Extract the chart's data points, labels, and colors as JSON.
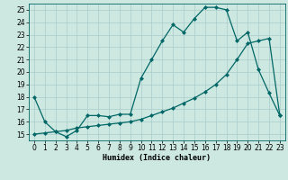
{
  "title": "",
  "xlabel": "Humidex (Indice chaleur)",
  "ylabel": "",
  "background_color": "#cce8e0",
  "grid_color": "#aacccc",
  "line_color": "#006666",
  "xlim": [
    -0.5,
    23.5
  ],
  "ylim": [
    14.5,
    25.5
  ],
  "yticks": [
    15,
    16,
    17,
    18,
    19,
    20,
    21,
    22,
    23,
    24,
    25
  ],
  "xticks": [
    0,
    1,
    2,
    3,
    4,
    5,
    6,
    7,
    8,
    9,
    10,
    11,
    12,
    13,
    14,
    15,
    16,
    17,
    18,
    19,
    20,
    21,
    22,
    23
  ],
  "line1_x": [
    0,
    1,
    2,
    3,
    4,
    5,
    6,
    7,
    8,
    9,
    10,
    11,
    12,
    13,
    14,
    15,
    16,
    17,
    18,
    19,
    20,
    21,
    22,
    23
  ],
  "line1_y": [
    18.0,
    16.0,
    15.2,
    14.8,
    15.3,
    16.5,
    16.5,
    16.4,
    16.6,
    16.6,
    19.5,
    21.0,
    22.5,
    23.8,
    23.2,
    24.3,
    25.2,
    25.2,
    25.0,
    22.5,
    23.2,
    20.2,
    18.3,
    16.5
  ],
  "line2_x": [
    0,
    1,
    2,
    3,
    4,
    5,
    6,
    7,
    8,
    9,
    10,
    11,
    12,
    13,
    14,
    15,
    16,
    17,
    18,
    19,
    20,
    21,
    22,
    23
  ],
  "line2_y": [
    15.0,
    15.1,
    15.2,
    15.3,
    15.5,
    15.6,
    15.7,
    15.8,
    15.9,
    16.0,
    16.2,
    16.5,
    16.8,
    17.1,
    17.5,
    17.9,
    18.4,
    19.0,
    19.8,
    21.0,
    22.3,
    22.5,
    22.7,
    16.5
  ],
  "marker": "D",
  "marker_size": 2,
  "line_width": 0.9,
  "font_size_xlabel": 6,
  "font_size_ticks": 5.5
}
